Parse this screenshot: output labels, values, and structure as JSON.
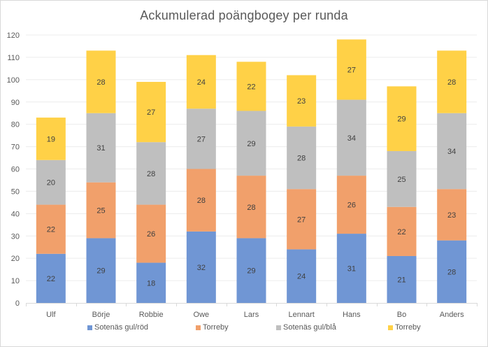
{
  "chart_data": {
    "type": "bar",
    "stacked": true,
    "title": "Ackumulerad poängbogey per runda",
    "xlabel": "",
    "ylabel": "",
    "ylim": [
      0,
      120
    ],
    "ytick_step": 10,
    "yticks": [
      "0",
      "10",
      "20",
      "30",
      "40",
      "50",
      "60",
      "70",
      "80",
      "90",
      "100",
      "110",
      "120"
    ],
    "grid": true,
    "legend_position": "bottom",
    "categories": [
      "Ulf",
      "Börje",
      "Robbie",
      "Owe",
      "Lars",
      "Lennart",
      "Hans",
      "Bo",
      "Anders"
    ],
    "series": [
      {
        "name": "Sotenäs gul/röd",
        "color": "#7096d4",
        "values": [
          22,
          29,
          18,
          32,
          29,
          24,
          31,
          21,
          28
        ]
      },
      {
        "name": "Torreby",
        "color": "#f1a06b",
        "values": [
          22,
          25,
          26,
          28,
          28,
          27,
          26,
          22,
          23
        ]
      },
      {
        "name": "Sotenäs gul/blå",
        "color": "#bfbfbf",
        "values": [
          20,
          31,
          28,
          27,
          29,
          28,
          34,
          25,
          34
        ]
      },
      {
        "name": "Torreby",
        "color": "#ffd147",
        "values": [
          19,
          28,
          27,
          24,
          22,
          23,
          27,
          29,
          28
        ]
      }
    ]
  }
}
